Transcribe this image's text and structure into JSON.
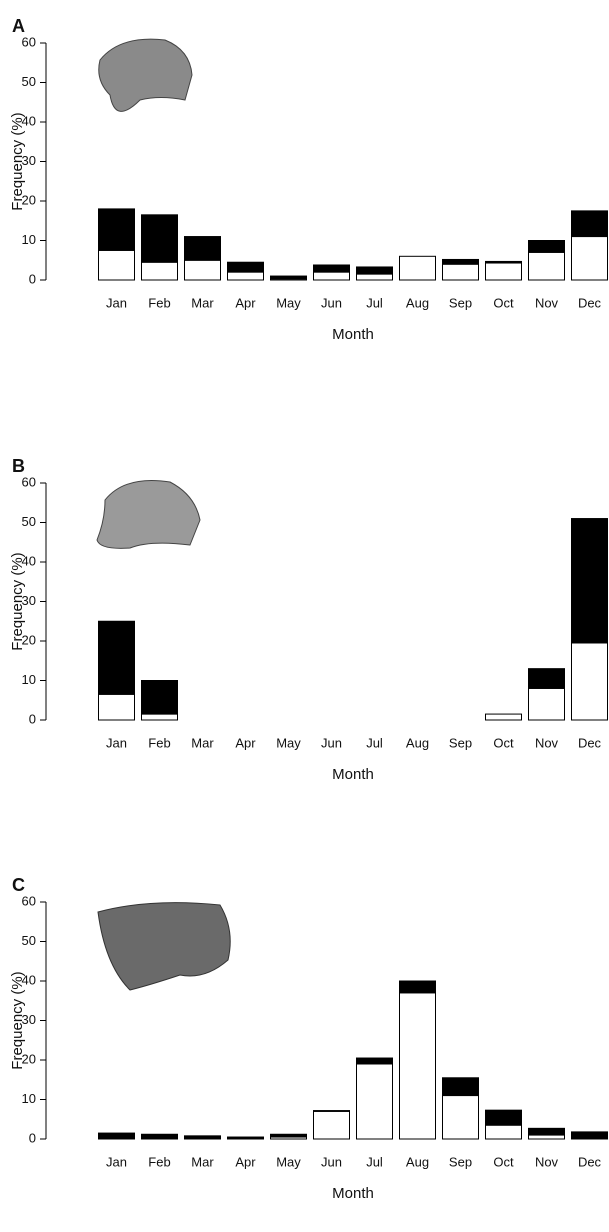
{
  "chart_data": [
    {
      "type": "bar",
      "stacked": true,
      "panel": "A",
      "ylabel": "Frequency (%)",
      "xlabel": "Month",
      "categories": [
        "Jan",
        "Feb",
        "Mar",
        "Apr",
        "May",
        "Jun",
        "Jul",
        "Aug",
        "Sep",
        "Oct",
        "Nov",
        "Dec"
      ],
      "series": [
        {
          "color": "#ffffff",
          "values": [
            7.5,
            4.5,
            5,
            2,
            0.3,
            2,
            1.5,
            6,
            4,
            4.3,
            7,
            11
          ]
        },
        {
          "color": "#000000",
          "values": [
            10.5,
            12,
            6,
            2.5,
            0.7,
            1.8,
            1.8,
            0,
            1.2,
            0.4,
            3,
            6.5
          ]
        }
      ],
      "ylim": [
        0,
        60
      ],
      "yticks": [
        0,
        10,
        20,
        30,
        40,
        50,
        60
      ]
    },
    {
      "type": "bar",
      "stacked": true,
      "panel": "B",
      "ylabel": "Frequency (%)",
      "xlabel": "Month",
      "categories": [
        "Jan",
        "Feb",
        "Mar",
        "Apr",
        "May",
        "Jun",
        "Jul",
        "Aug",
        "Sep",
        "Oct",
        "Nov",
        "Dec"
      ],
      "series": [
        {
          "color": "#ffffff",
          "values": [
            6.5,
            1.5,
            0,
            0,
            0,
            0,
            0,
            0,
            0,
            1.5,
            8,
            19.5
          ]
        },
        {
          "color": "#000000",
          "values": [
            18.5,
            8.5,
            0,
            0,
            0,
            0,
            0,
            0,
            0,
            0,
            5,
            31.5
          ]
        }
      ],
      "ylim": [
        0,
        60
      ],
      "yticks": [
        0,
        10,
        20,
        30,
        40,
        50,
        60
      ]
    },
    {
      "type": "bar",
      "stacked": true,
      "panel": "C",
      "ylabel": "Frequency (%)",
      "xlabel": "Month",
      "categories": [
        "Jan",
        "Feb",
        "Mar",
        "Apr",
        "May",
        "Jun",
        "Jul",
        "Aug",
        "Sep",
        "Oct",
        "Nov",
        "Dec"
      ],
      "series": [
        {
          "color": "#ffffff",
          "values": [
            0,
            0,
            0,
            0,
            0.5,
            7,
            19,
            37,
            11,
            3.5,
            1,
            0
          ]
        },
        {
          "color": "#000000",
          "values": [
            1.5,
            1.2,
            0.8,
            0.5,
            0.7,
            0.2,
            1.5,
            3,
            4.5,
            3.8,
            1.7,
            1.8
          ]
        }
      ],
      "ylim": [
        0,
        60
      ],
      "yticks": [
        0,
        10,
        20,
        30,
        40,
        50,
        60
      ]
    }
  ]
}
